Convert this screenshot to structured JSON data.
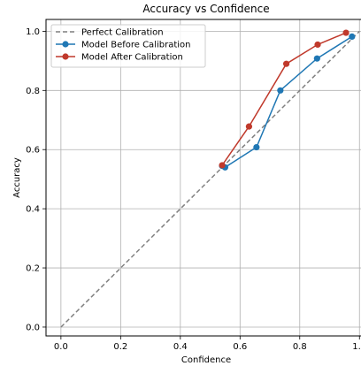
{
  "chart_data": {
    "type": "line",
    "title": "Accuracy vs Confidence",
    "xlabel": "Confidence",
    "ylabel": "Accuracy",
    "xlim": [
      -0.05,
      1.02
    ],
    "ylim": [
      -0.03,
      1.04
    ],
    "xticks": [
      0.0,
      0.2,
      0.4,
      0.6,
      0.8,
      1.0
    ],
    "yticks": [
      0.0,
      0.2,
      0.4,
      0.6,
      0.8,
      1.0
    ],
    "xtick_labels": [
      "0.0",
      "0.2",
      "0.4",
      "0.6",
      "0.8",
      "1.0"
    ],
    "ytick_labels": [
      "0.0",
      "0.2",
      "0.4",
      "0.6",
      "0.8",
      "1.0"
    ],
    "grid": true,
    "legend_position": "top-left",
    "series": [
      {
        "name": "Perfect Calibration",
        "color": "#808080",
        "style": "dashed",
        "marker": "none",
        "x": [
          0.0,
          1.0
        ],
        "y": [
          0.0,
          1.0
        ]
      },
      {
        "name": "Model Before Calibration",
        "color": "#1f77b4",
        "style": "solid",
        "marker": "circle",
        "x": [
          0.54,
          0.55,
          0.655,
          0.735,
          0.858,
          0.975
        ],
        "y": [
          0.545,
          0.54,
          0.608,
          0.8,
          0.908,
          0.982
        ]
      },
      {
        "name": "Model After Calibration",
        "color": "#c0392b",
        "style": "solid",
        "marker": "circle",
        "x": [
          0.54,
          0.63,
          0.755,
          0.86,
          0.955
        ],
        "y": [
          0.547,
          0.678,
          0.89,
          0.955,
          0.995
        ]
      }
    ]
  }
}
